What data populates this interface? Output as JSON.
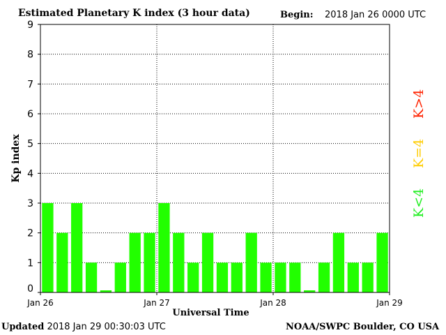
{
  "header": {
    "title": "Estimated Planetary K index (3 hour data)",
    "begin_label": "Begin:",
    "begin_value": "2018 Jan 26 0000 UTC"
  },
  "footer": {
    "updated_label": "Updated",
    "updated_value": "2018 Jan 29 00:30:03 UTC",
    "source": "NOAA/SWPC Boulder, CO USA"
  },
  "legend": [
    {
      "label": "K>4",
      "color": "#ff2200"
    },
    {
      "label": "K=4",
      "color": "#ffcc00"
    },
    {
      "label": "K<4",
      "color": "#22ee22"
    }
  ],
  "chart_data": {
    "type": "bar",
    "title": "Estimated Planetary K index (3 hour data)",
    "xlabel": "Universal Time",
    "ylabel": "Kp index",
    "ylim": [
      0,
      9
    ],
    "yticks": [
      0,
      1,
      2,
      3,
      4,
      5,
      6,
      7,
      8,
      9
    ],
    "x_tick_labels": [
      "Jan 26",
      "Jan 27",
      "Jan 28",
      "Jan 29"
    ],
    "interval_hours": 3,
    "grid": true,
    "bar_color": "#22ff00",
    "values": [
      3,
      2,
      3,
      1,
      0,
      1,
      2,
      2,
      3,
      2,
      1,
      2,
      1,
      1,
      2,
      1,
      1,
      1,
      0,
      1,
      2,
      1,
      1,
      2
    ]
  }
}
